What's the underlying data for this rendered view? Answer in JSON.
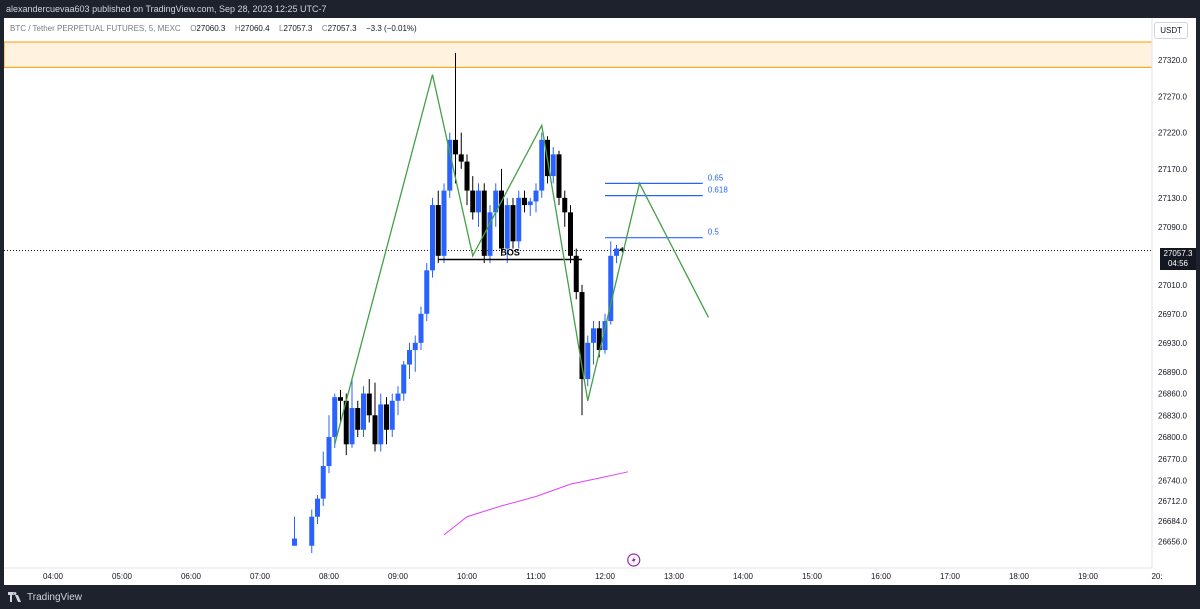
{
  "header": {
    "publisher_text": "alexandercuevaa603 published on TradingView.com, Sep 28, 2023 12:25 UTC-7"
  },
  "symbol": {
    "name": "BTC / Tether PERPETUAL FUTURES, 5, MEXC",
    "o_label": "O",
    "o_value": "27060.3",
    "h_label": "H",
    "h_value": "27060.4",
    "l_label": "L",
    "l_value": "27057.3",
    "c_label": "C",
    "c_value": "27057.3",
    "change": "−3.3 (−0.01%)"
  },
  "currency_badge": "USDT",
  "current_price": {
    "value": "27057.3",
    "countdown": "04:56"
  },
  "footer": {
    "brand": "TradingView"
  },
  "colors": {
    "up": "#2962ff",
    "down": "#000000",
    "zigzag": "#43a047",
    "fib": "#2962ff",
    "zone": "#ff9800",
    "ma": "#e040fb",
    "bos": "#000000"
  },
  "chart_data": {
    "type": "candlestick",
    "x_axis": {
      "labels": [
        "04:00",
        "05:00",
        "06:00",
        "07:00",
        "08:00",
        "09:00",
        "10:00",
        "11:00",
        "12:00",
        "13:00",
        "14:00",
        "15:00",
        "16:00",
        "17:00",
        "18:00",
        "19:00",
        "20:"
      ]
    },
    "y_axis": {
      "labels": [
        "27320.0",
        "27270.0",
        "27220.0",
        "27170.0",
        "27130.0",
        "27090.0",
        "27010.0",
        "26970.0",
        "26930.0",
        "26890.0",
        "26860.0",
        "26830.0",
        "26800.0",
        "26770.0",
        "26740.0",
        "26712.0",
        "26684.0",
        "26656.0"
      ]
    },
    "candles": [
      {
        "t": "07:30",
        "o": 26650,
        "h": 26690,
        "l": 26650,
        "c": 26660
      },
      {
        "t": "07:45",
        "o": 26650,
        "h": 26700,
        "l": 26640,
        "c": 26690
      },
      {
        "t": "07:50",
        "o": 26690,
        "h": 26720,
        "l": 26680,
        "c": 26715
      },
      {
        "t": "07:55",
        "o": 26715,
        "h": 26780,
        "l": 26705,
        "c": 26760
      },
      {
        "t": "08:00",
        "o": 26760,
        "h": 26830,
        "l": 26750,
        "c": 26800
      },
      {
        "t": "08:05",
        "o": 26800,
        "h": 26860,
        "l": 26785,
        "c": 26855
      },
      {
        "t": "08:10",
        "o": 26855,
        "h": 26865,
        "l": 26820,
        "c": 26850
      },
      {
        "t": "08:15",
        "o": 26850,
        "h": 26860,
        "l": 26775,
        "c": 26790
      },
      {
        "t": "08:20",
        "o": 26790,
        "h": 26880,
        "l": 26785,
        "c": 26840
      },
      {
        "t": "08:25",
        "o": 26840,
        "h": 26850,
        "l": 26800,
        "c": 26810
      },
      {
        "t": "08:30",
        "o": 26810,
        "h": 26870,
        "l": 26800,
        "c": 26860
      },
      {
        "t": "08:35",
        "o": 26860,
        "h": 26880,
        "l": 26820,
        "c": 26830
      },
      {
        "t": "08:40",
        "o": 26830,
        "h": 26875,
        "l": 26780,
        "c": 26790
      },
      {
        "t": "08:45",
        "o": 26790,
        "h": 26860,
        "l": 26780,
        "c": 26845
      },
      {
        "t": "08:50",
        "o": 26845,
        "h": 26855,
        "l": 26790,
        "c": 26810
      },
      {
        "t": "08:55",
        "o": 26810,
        "h": 26860,
        "l": 26800,
        "c": 26850
      },
      {
        "t": "09:00",
        "o": 26850,
        "h": 26870,
        "l": 26830,
        "c": 26860
      },
      {
        "t": "09:05",
        "o": 26860,
        "h": 26905,
        "l": 26850,
        "c": 26900
      },
      {
        "t": "09:10",
        "o": 26900,
        "h": 26930,
        "l": 26880,
        "c": 26920
      },
      {
        "t": "09:15",
        "o": 26920,
        "h": 26940,
        "l": 26890,
        "c": 26930
      },
      {
        "t": "09:20",
        "o": 26930,
        "h": 26980,
        "l": 26920,
        "c": 26970
      },
      {
        "t": "09:25",
        "o": 26970,
        "h": 27040,
        "l": 26960,
        "c": 27030
      },
      {
        "t": "09:30",
        "o": 27030,
        "h": 27130,
        "l": 27020,
        "c": 27120
      },
      {
        "t": "09:35",
        "o": 27120,
        "h": 27140,
        "l": 27040,
        "c": 27050
      },
      {
        "t": "09:40",
        "o": 27050,
        "h": 27150,
        "l": 27040,
        "c": 27140
      },
      {
        "t": "09:45",
        "o": 27140,
        "h": 27220,
        "l": 27130,
        "c": 27210
      },
      {
        "t": "09:50",
        "o": 27210,
        "h": 27330,
        "l": 27150,
        "c": 27190
      },
      {
        "t": "09:55",
        "o": 27190,
        "h": 27220,
        "l": 27170,
        "c": 27180
      },
      {
        "t": "10:00",
        "o": 27180,
        "h": 27190,
        "l": 27120,
        "c": 27140
      },
      {
        "t": "10:05",
        "o": 27140,
        "h": 27160,
        "l": 27100,
        "c": 27110
      },
      {
        "t": "10:10",
        "o": 27110,
        "h": 27150,
        "l": 27090,
        "c": 27140
      },
      {
        "t": "10:15",
        "o": 27140,
        "h": 27150,
        "l": 27040,
        "c": 27050
      },
      {
        "t": "10:20",
        "o": 27050,
        "h": 27120,
        "l": 27040,
        "c": 27110
      },
      {
        "t": "10:25",
        "o": 27110,
        "h": 27150,
        "l": 27090,
        "c": 27140
      },
      {
        "t": "10:30",
        "o": 27140,
        "h": 27170,
        "l": 27050,
        "c": 27060
      },
      {
        "t": "10:35",
        "o": 27060,
        "h": 27130,
        "l": 27040,
        "c": 27120
      },
      {
        "t": "10:40",
        "o": 27120,
        "h": 27130,
        "l": 27060,
        "c": 27070
      },
      {
        "t": "10:45",
        "o": 27070,
        "h": 27140,
        "l": 27060,
        "c": 27130
      },
      {
        "t": "10:50",
        "o": 27130,
        "h": 27140,
        "l": 27110,
        "c": 27120
      },
      {
        "t": "10:55",
        "o": 27120,
        "h": 27130,
        "l": 27105,
        "c": 27125
      },
      {
        "t": "11:00",
        "o": 27125,
        "h": 27150,
        "l": 27110,
        "c": 27140
      },
      {
        "t": "11:05",
        "o": 27140,
        "h": 27220,
        "l": 27130,
        "c": 27210
      },
      {
        "t": "11:10",
        "o": 27210,
        "h": 27215,
        "l": 27150,
        "c": 27160
      },
      {
        "t": "11:15",
        "o": 27160,
        "h": 27200,
        "l": 27150,
        "c": 27190
      },
      {
        "t": "11:20",
        "o": 27190,
        "h": 27195,
        "l": 27120,
        "c": 27130
      },
      {
        "t": "11:25",
        "o": 27130,
        "h": 27140,
        "l": 27090,
        "c": 27110
      },
      {
        "t": "11:30",
        "o": 27110,
        "h": 27120,
        "l": 27040,
        "c": 27050
      },
      {
        "t": "11:35",
        "o": 27050,
        "h": 27060,
        "l": 26990,
        "c": 27000
      },
      {
        "t": "11:40",
        "o": 27000,
        "h": 27010,
        "l": 26830,
        "c": 26880
      },
      {
        "t": "11:45",
        "o": 26880,
        "h": 26940,
        "l": 26870,
        "c": 26930
      },
      {
        "t": "11:50",
        "o": 26930,
        "h": 26960,
        "l": 26900,
        "c": 26950
      },
      {
        "t": "11:55",
        "o": 26950,
        "h": 26960,
        "l": 26910,
        "c": 26920
      },
      {
        "t": "12:00",
        "o": 26920,
        "h": 26970,
        "l": 26915,
        "c": 26960
      },
      {
        "t": "12:05",
        "o": 26960,
        "h": 27070,
        "l": 26955,
        "c": 27050
      },
      {
        "t": "12:10",
        "o": 27050,
        "h": 27065,
        "l": 27040,
        "c": 27060
      },
      {
        "t": "12:15",
        "o": 27060,
        "h": 27062,
        "l": 27055,
        "c": 27057
      }
    ],
    "zigzag": [
      {
        "t": "08:05",
        "price": 26790
      },
      {
        "t": "09:30",
        "price": 27300
      },
      {
        "t": "10:05",
        "price": 27050
      },
      {
        "t": "11:05",
        "price": 27230
      },
      {
        "t": "11:45",
        "price": 26850
      },
      {
        "t": "12:30",
        "price": 27150
      },
      {
        "t": "13:30",
        "price": 26965
      }
    ],
    "bos": {
      "label": "BOS",
      "price": 27045,
      "from": "09:35",
      "to": "11:40"
    },
    "fib_levels": [
      {
        "label": "0.65",
        "price": 27150
      },
      {
        "label": "0.618",
        "price": 27133
      },
      {
        "label": "0.5",
        "price": 27075
      }
    ],
    "resistance_zone": {
      "from": 27310,
      "to": 27345
    },
    "moving_average": [
      {
        "t": "09:40",
        "price": 26665
      },
      {
        "t": "10:00",
        "price": 26690
      },
      {
        "t": "10:30",
        "price": 26705
      },
      {
        "t": "11:00",
        "price": 26718
      },
      {
        "t": "11:30",
        "price": 26735
      },
      {
        "t": "12:00",
        "price": 26745
      },
      {
        "t": "12:20",
        "price": 26752
      }
    ],
    "current_price": 27057.3
  }
}
